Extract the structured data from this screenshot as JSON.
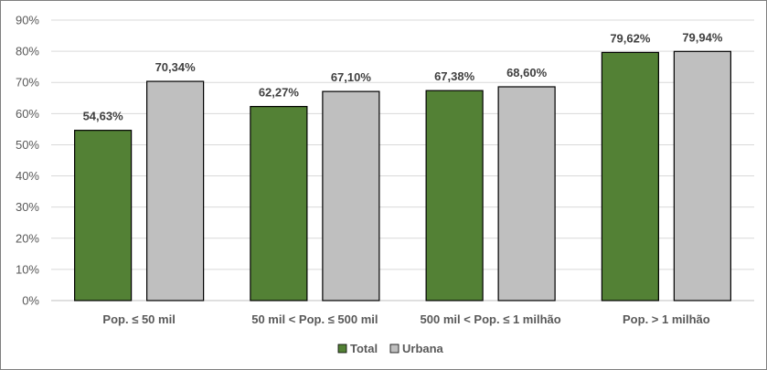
{
  "chart_data": {
    "type": "bar",
    "categories": [
      "Pop. ≤ 50 mil",
      "50 mil < Pop. ≤ 500 mil",
      "500 mil < Pop. ≤ 1 milhão",
      "Pop. > 1 milhão"
    ],
    "series": [
      {
        "name": "Total",
        "values": [
          54.63,
          62.27,
          67.38,
          79.62
        ],
        "labels": [
          "54,63%",
          "62,27%",
          "67,38%",
          "79,62%"
        ],
        "color": "#538135"
      },
      {
        "name": "Urbana",
        "values": [
          70.34,
          67.1,
          68.6,
          79.94
        ],
        "labels": [
          "70,34%",
          "67,10%",
          "68,60%",
          "79,94%"
        ],
        "color": "#bfbfbf"
      }
    ],
    "ylim": [
      0,
      90
    ],
    "yticks": [
      0,
      10,
      20,
      30,
      40,
      50,
      60,
      70,
      80,
      90
    ],
    "ytick_labels": [
      "0%",
      "10%",
      "20%",
      "30%",
      "40%",
      "50%",
      "60%",
      "70%",
      "80%",
      "90%"
    ],
    "grid": true,
    "legend_position": "bottom-center",
    "title": "",
    "xlabel": "",
    "ylabel": ""
  }
}
